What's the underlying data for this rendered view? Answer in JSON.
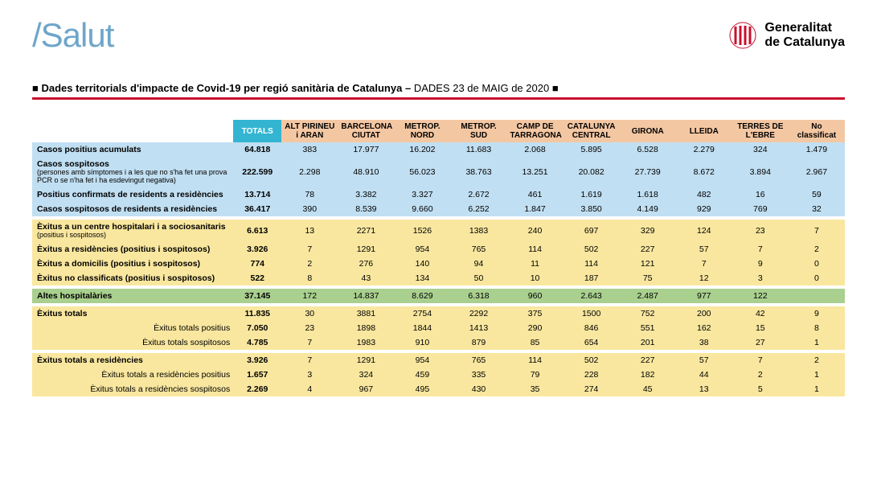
{
  "header": {
    "salut": "/Salut",
    "gc_line1": "Generalitat",
    "gc_line2": "de Catalunya"
  },
  "title": {
    "bullet": "■",
    "bold": "Dades territorials d'impacte de Covid-19 per regió sanitària de Catalunya –",
    "light": "DADES 23 de MAIG de 2020",
    "bullet2": "■"
  },
  "columns": {
    "totals": "TOTALS",
    "regions": [
      "ALT PIRINEU i ARAN",
      "BARCELONA CIUTAT",
      "METROP. NORD",
      "METROP. SUD",
      "CAMP DE TARRAGONA",
      "CATALUNYA CENTRAL",
      "GIRONA",
      "LLEIDA",
      "TERRES DE L'EBRE",
      "No classificat"
    ]
  },
  "sections": [
    {
      "bg": "bg-blue",
      "rows": [
        {
          "label": "Casos positius acumulats",
          "bold": true,
          "total": "64.818",
          "vals": [
            "383",
            "17.977",
            "16.202",
            "11.683",
            "2.068",
            "5.895",
            "6.528",
            "2.279",
            "324",
            "1.479"
          ]
        },
        {
          "label": "Casos sospitosos",
          "bold": true,
          "note": "(persones amb símptomes i a les que no s'ha fet una prova PCR o se n'ha fet i ha esdevingut negativa)",
          "total": "222.599",
          "vals": [
            "2.298",
            "48.910",
            "56.023",
            "38.763",
            "13.251",
            "20.082",
            "27.739",
            "8.672",
            "3.894",
            "2.967"
          ]
        },
        {
          "label": "Positius confirmats de residents a residències",
          "bold": true,
          "total": "13.714",
          "vals": [
            "78",
            "3.382",
            "3.327",
            "2.672",
            "461",
            "1.619",
            "1.618",
            "482",
            "16",
            "59"
          ]
        },
        {
          "label": "Casos sospitosos de residents a residències",
          "bold": true,
          "total": "36.417",
          "vals": [
            "390",
            "8.539",
            "9.660",
            "6.252",
            "1.847",
            "3.850",
            "4.149",
            "929",
            "769",
            "32"
          ]
        }
      ]
    },
    {
      "spacer": true
    },
    {
      "bg": "bg-yellow",
      "rows": [
        {
          "label": "Èxitus a un centre hospitalari i a sociosanitaris",
          "note": "(positius i sospitosos)",
          "bold": true,
          "total": "6.613",
          "vals": [
            "13",
            "2271",
            "1526",
            "1383",
            "240",
            "697",
            "329",
            "124",
            "23",
            "7"
          ]
        },
        {
          "label": "Èxitus a residències (positius i sospitosos)",
          "bold": true,
          "total": "3.926",
          "vals": [
            "7",
            "1291",
            "954",
            "765",
            "114",
            "502",
            "227",
            "57",
            "7",
            "2"
          ]
        },
        {
          "label": "Èxitus a domicilis (positius i sospitosos)",
          "bold": true,
          "total": "774",
          "vals": [
            "2",
            "276",
            "140",
            "94",
            "11",
            "114",
            "121",
            "7",
            "9",
            "0"
          ]
        },
        {
          "label": "Èxitus no classificats (positius i sospitosos)",
          "bold": true,
          "total": "522",
          "vals": [
            "8",
            "43",
            "134",
            "50",
            "10",
            "187",
            "75",
            "12",
            "3",
            "0"
          ]
        }
      ]
    },
    {
      "spacer": true
    },
    {
      "bg": "bg-green",
      "rows": [
        {
          "label": "Altes hospitalàries",
          "bold": true,
          "total": "37.145",
          "vals": [
            "172",
            "14.837",
            "8.629",
            "6.318",
            "960",
            "2.643",
            "2.487",
            "977",
            "122",
            ""
          ]
        }
      ]
    },
    {
      "spacer": true
    },
    {
      "bg": "bg-yellow",
      "rows": [
        {
          "label": "Èxitus totals",
          "bold": true,
          "total": "11.835",
          "vals": [
            "30",
            "3881",
            "2754",
            "2292",
            "375",
            "1500",
            "752",
            "200",
            "42",
            "9"
          ]
        },
        {
          "label": "Èxitus totals positius",
          "sub": true,
          "total": "7.050",
          "vals": [
            "23",
            "1898",
            "1844",
            "1413",
            "290",
            "846",
            "551",
            "162",
            "15",
            "8"
          ]
        },
        {
          "label": "Èxitus totals sospitosos",
          "sub": true,
          "total": "4.785",
          "vals": [
            "7",
            "1983",
            "910",
            "879",
            "85",
            "654",
            "201",
            "38",
            "27",
            "1"
          ]
        }
      ]
    },
    {
      "spacer": true
    },
    {
      "bg": "bg-yellow",
      "rows": [
        {
          "label": "Èxitus totals a residències",
          "bold": true,
          "total": "3.926",
          "vals": [
            "7",
            "1291",
            "954",
            "765",
            "114",
            "502",
            "227",
            "57",
            "7",
            "2"
          ]
        },
        {
          "label": "Èxitus totals a residències positius",
          "sub": true,
          "total": "1.657",
          "vals": [
            "3",
            "324",
            "459",
            "335",
            "79",
            "228",
            "182",
            "44",
            "2",
            "1"
          ]
        },
        {
          "label": "Èxitus totals a residències sospitosos",
          "sub": true,
          "total": "2.269",
          "vals": [
            "4",
            "967",
            "495",
            "430",
            "35",
            "274",
            "45",
            "13",
            "5",
            "1"
          ]
        }
      ]
    }
  ]
}
